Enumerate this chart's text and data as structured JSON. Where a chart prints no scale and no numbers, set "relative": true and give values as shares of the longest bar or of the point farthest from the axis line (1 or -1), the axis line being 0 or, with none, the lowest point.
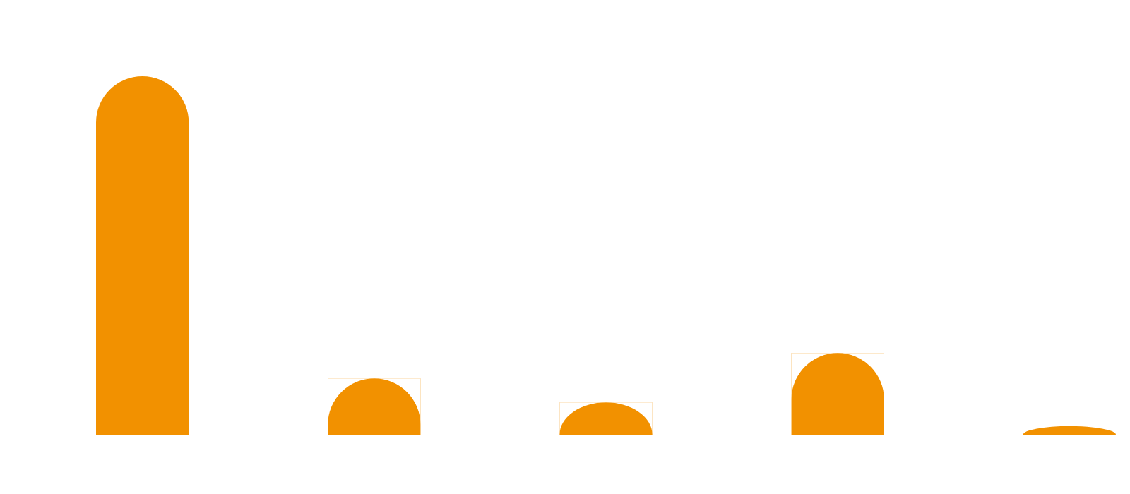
{
  "chart_data": {
    "type": "bar",
    "relative": true,
    "categories": [
      null,
      null,
      null,
      null,
      null
    ],
    "values": [
      1,
      0.157,
      0.09,
      0.228,
      0.024
    ],
    "color": "#f29100"
  }
}
